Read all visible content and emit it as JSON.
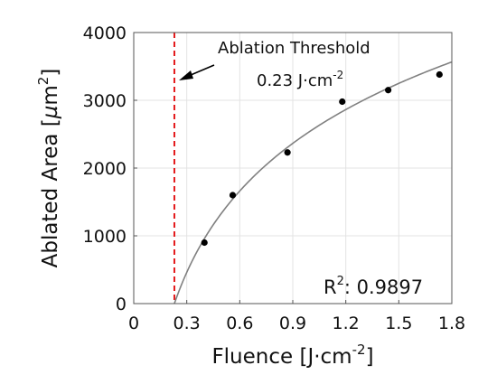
{
  "chart_data": {
    "type": "scatter",
    "xlabel": {
      "text": "Fluence [J·cm",
      "sup": "-2",
      "end": "]"
    },
    "ylabel": {
      "text": "Ablated Area [",
      "mu": "µ",
      "unit": "m",
      "sup": "2",
      "end": "]"
    },
    "xlim": [
      0,
      1.8
    ],
    "ylim": [
      0,
      4000
    ],
    "xticks": [
      0,
      0.3,
      0.6,
      0.9,
      1.2,
      1.5,
      1.8
    ],
    "xtick_labels": [
      "0",
      "0.3",
      "0.6",
      "0.9",
      "1.2",
      "1.5",
      "1.8"
    ],
    "yticks": [
      0,
      1000,
      2000,
      3000,
      4000
    ],
    "ytick_labels": [
      "0",
      "1000",
      "2000",
      "3000",
      "4000"
    ],
    "grid": true,
    "series": [
      {
        "kind": "points",
        "x": [
          0.4,
          0.56,
          0.87,
          1.18,
          1.44,
          1.73
        ],
        "y": [
          900,
          1600,
          2230,
          2980,
          3150,
          3380
        ],
        "color": "#000000"
      },
      {
        "kind": "fit",
        "model": "logarithmic",
        "threshold": 0.23,
        "slope": 1733,
        "x_start": 0.23,
        "x_end": 1.8,
        "color": "#808080"
      }
    ],
    "threshold_line": {
      "x": 0.23,
      "color": "#e41a1c",
      "style": "dashed"
    },
    "annotations": {
      "threshold_title": "Ablation Threshold",
      "threshold_value": "0.23 J·cm",
      "threshold_sup": "-2",
      "r2": "R",
      "r2_sup": "2",
      "r2_value": ": 0.9897"
    }
  }
}
